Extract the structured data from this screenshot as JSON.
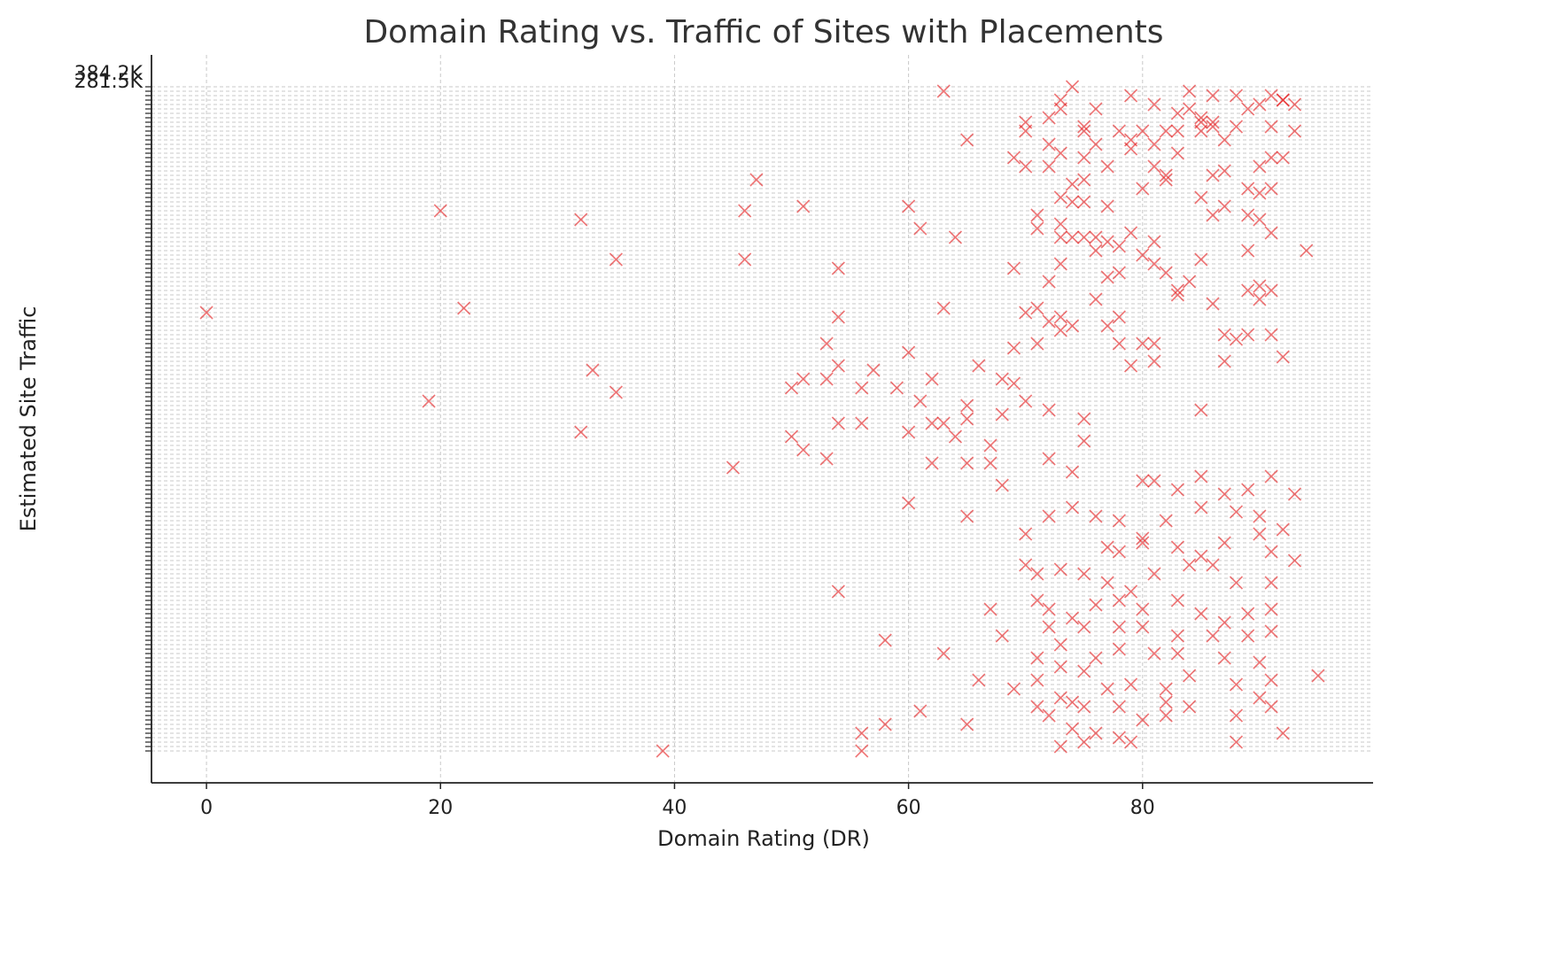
{
  "chart_data": {
    "type": "scatter",
    "title": "Domain Rating vs. Traffic of Sites with Placements",
    "xlabel": "Domain Rating (DR)",
    "ylabel": "Estimated Site Traffic",
    "xlim": [
      -4.7,
      99.7
    ],
    "xticks": [
      0,
      20,
      40,
      60,
      80
    ],
    "ylim": [
      -7.2,
      157.2
    ],
    "y_categories": [
      null,
      null,
      null,
      null,
      null,
      null,
      null,
      null,
      null,
      null,
      null,
      null,
      null,
      null,
      null,
      null,
      null,
      null,
      null,
      null,
      null,
      null,
      null,
      null,
      null,
      null,
      null,
      null,
      null,
      null,
      null,
      null,
      null,
      null,
      null,
      null,
      null,
      null,
      null,
      null,
      null,
      null,
      null,
      null,
      null,
      null,
      null,
      null,
      null,
      null,
      null,
      null,
      null,
      null,
      null,
      null,
      null,
      null,
      null,
      null,
      null,
      null,
      null,
      null,
      null,
      null,
      null,
      null,
      null,
      null,
      null,
      null,
      null,
      null,
      null,
      null,
      null,
      null,
      null,
      null,
      null,
      null,
      null,
      null,
      null,
      null,
      null,
      null,
      null,
      null,
      null,
      null,
      null,
      null,
      null,
      null,
      null,
      null,
      null,
      null,
      null,
      null,
      null,
      null,
      null,
      null,
      null,
      null,
      null,
      null,
      null,
      null,
      null,
      null,
      null,
      null,
      null,
      null,
      null,
      null,
      null,
      null,
      null,
      null,
      null,
      null,
      null,
      null,
      null,
      null,
      null,
      null,
      null,
      null,
      null,
      null,
      null,
      null,
      null,
      null,
      null,
      null,
      null,
      null,
      null,
      null,
      null,
      null,
      null,
      "281.5K",
      "384.2K"
    ],
    "grid": true,
    "color": "#e41a1c",
    "x": [
      63,
      74,
      84,
      86,
      88,
      91,
      92,
      92,
      93,
      73,
      79,
      72,
      73,
      76,
      81,
      83,
      85,
      86,
      86,
      90,
      89,
      84,
      70,
      70,
      75,
      75,
      80,
      82,
      85,
      88,
      91,
      93,
      65,
      72,
      76,
      78,
      79,
      81,
      83,
      85,
      87,
      69,
      70,
      72,
      73,
      75,
      77,
      79,
      81,
      82,
      83,
      86,
      87,
      90,
      91,
      92,
      47,
      74,
      75,
      80,
      82,
      85,
      89,
      90,
      91,
      20,
      32,
      46,
      51,
      60,
      71,
      73,
      74,
      75,
      77,
      86,
      87,
      89,
      90,
      91,
      73,
      75,
      76,
      77,
      79,
      81,
      61,
      64,
      71,
      73,
      74,
      76,
      78,
      80,
      81,
      85,
      89,
      94,
      35,
      46,
      54,
      69,
      73,
      77,
      78,
      82,
      84,
      83,
      72,
      89,
      90,
      91,
      0,
      22,
      54,
      63,
      70,
      71,
      72,
      73,
      74,
      76,
      77,
      78,
      83,
      86,
      90,
      53,
      60,
      69,
      71,
      73,
      78,
      80,
      81,
      87,
      88,
      89,
      91,
      33,
      54,
      57,
      59,
      62,
      66,
      68,
      69,
      79,
      81,
      87,
      92,
      35,
      19,
      50,
      51,
      53,
      56,
      61,
      65,
      70,
      72,
      85,
      32,
      50,
      54,
      56,
      60,
      62,
      63,
      65,
      67,
      68,
      75,
      75,
      51,
      53,
      62,
      64,
      65,
      67,
      72,
      74,
      45,
      68,
      80,
      81,
      83,
      85,
      87,
      89,
      91,
      93,
      60,
      65,
      72,
      74,
      76,
      78,
      80,
      82,
      85,
      88,
      90,
      92,
      70,
      77,
      78,
      80,
      83,
      85,
      87,
      90,
      91,
      93,
      70,
      71,
      73,
      75,
      77,
      79,
      81,
      84,
      86,
      88,
      91,
      54,
      67,
      71,
      72,
      74,
      76,
      78,
      80,
      83,
      85,
      87,
      89,
      91,
      58,
      68,
      72,
      75,
      78,
      80,
      83,
      86,
      89,
      91,
      63,
      71,
      73,
      76,
      78,
      81,
      83,
      87,
      90,
      66,
      69,
      71,
      73,
      75,
      77,
      79,
      82,
      84,
      88,
      91,
      95,
      61,
      65,
      71,
      73,
      74,
      75,
      78,
      80,
      82,
      84,
      88,
      90,
      91,
      56,
      58,
      72,
      74,
      76,
      78,
      82,
      88,
      92,
      39,
      56,
      73,
      75,
      79
    ],
    "values": [
      149,
      150,
      149,
      148,
      148,
      148,
      147,
      147,
      146,
      147,
      148,
      143,
      145,
      145,
      146,
      144,
      143,
      142,
      141,
      146,
      145,
      145,
      142,
      140,
      141,
      140,
      140,
      140,
      142,
      141,
      141,
      140,
      138,
      137,
      137,
      140,
      138,
      137,
      140,
      140,
      138,
      134,
      132,
      132,
      135,
      134,
      132,
      136,
      132,
      130,
      135,
      130,
      131,
      132,
      134,
      134,
      129,
      128,
      129,
      127,
      129,
      125,
      127,
      126,
      127,
      122,
      120,
      122,
      123,
      123,
      121,
      125,
      124,
      124,
      123,
      121,
      123,
      121,
      120,
      117,
      119,
      116,
      116,
      115,
      117,
      115,
      118,
      116,
      118,
      116,
      116,
      113,
      114,
      112,
      110,
      111,
      113,
      113,
      111,
      111,
      109,
      109,
      110,
      107,
      108,
      108,
      106,
      104,
      106,
      104,
      105,
      104,
      99,
      100,
      98,
      100,
      99,
      100,
      97,
      98,
      96,
      102,
      96,
      98,
      103,
      101,
      102,
      92,
      90,
      91,
      92,
      95,
      92,
      92,
      92,
      94,
      93,
      94,
      94,
      86,
      87,
      86,
      82,
      84,
      87,
      84,
      83,
      87,
      88,
      88,
      89,
      81,
      79,
      82,
      84,
      84,
      82,
      79,
      78,
      79,
      77,
      77,
      72,
      71,
      74,
      74,
      72,
      74,
      74,
      75,
      69,
      76,
      75,
      70,
      68,
      66,
      65,
      71,
      65,
      65,
      66,
      63,
      64,
      60,
      61,
      61,
      59,
      62,
      58,
      59,
      62,
      58,
      56,
      53,
      53,
      55,
      53,
      52,
      48,
      52,
      55,
      54,
      53,
      50,
      49,
      46,
      45,
      47,
      46,
      44,
      47,
      49,
      45,
      43,
      42,
      40,
      41,
      40,
      38,
      36,
      40,
      42,
      42,
      38,
      38,
      36,
      32,
      34,
      32,
      30,
      33,
      34,
      32,
      34,
      31,
      29,
      31,
      32,
      25,
      26,
      28,
      28,
      28,
      28,
      26,
      26,
      26,
      27,
      22,
      21,
      24,
      21,
      23,
      22,
      22,
      21,
      20,
      16,
      14,
      16,
      19,
      18,
      14,
      15,
      14,
      17,
      15,
      16,
      17,
      9,
      6,
      10,
      12,
      11,
      10,
      10,
      7,
      11,
      10,
      8,
      12,
      10,
      4,
      6,
      8,
      5,
      4,
      3,
      8,
      2,
      4,
      0,
      0,
      1,
      2,
      2
    ]
  }
}
